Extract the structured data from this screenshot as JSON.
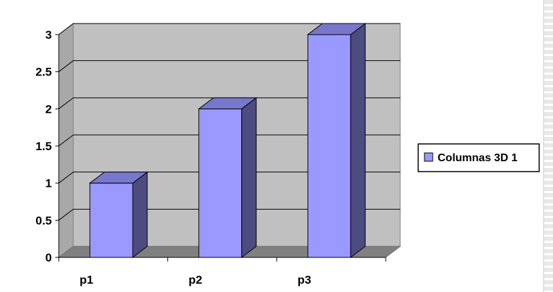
{
  "chart_data": {
    "type": "bar",
    "three_d": true,
    "categories": [
      "p1",
      "p2",
      "p3"
    ],
    "series": [
      {
        "name": "Columnas 3D 1",
        "values": [
          1,
          2,
          3
        ]
      }
    ],
    "yticks": [
      "0",
      "0.5",
      "1",
      "1.5",
      "2",
      "2.5",
      "3"
    ],
    "ylim": [
      0,
      3
    ],
    "grid": true,
    "legend": "right",
    "colors": {
      "bar_front": "#9999ff",
      "bar_side": "#4c4c80",
      "bar_top": "#7777cc",
      "wall": "#c0c0c0",
      "floor": "#808080",
      "side_wall": "#a8a8a8"
    }
  }
}
